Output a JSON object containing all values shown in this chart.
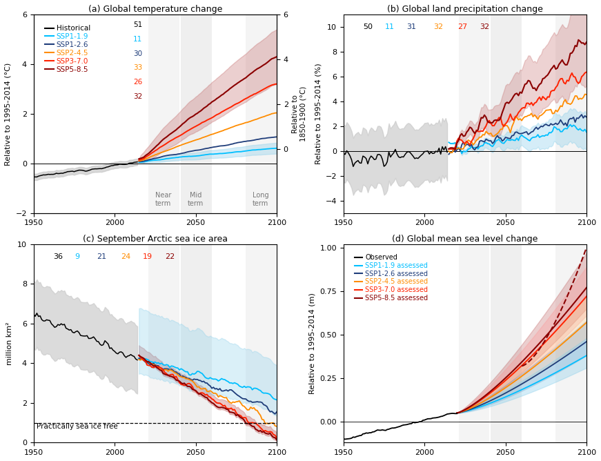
{
  "title_a": "(a) Global temperature change",
  "title_b": "(b) Global land precipitation change",
  "title_c": "(c) September Arctic sea ice area",
  "title_d": "(d) Global mean sea level change",
  "colors": {
    "historical": "#000000",
    "ssp119": "#00BFFF",
    "ssp126": "#1F3D7A",
    "ssp245": "#FF8C00",
    "ssp370": "#FF2200",
    "ssp585": "#8B0000"
  },
  "shade_colors": {
    "historical": "#C8C8C8",
    "ssp119": "#87CEEB",
    "ssp126": "#7090C0",
    "ssp245": "#FFD080",
    "ssp370": "#FF9090",
    "ssp585": "#C06060"
  },
  "near_term": [
    2021,
    2040
  ],
  "mid_term": [
    2041,
    2060
  ],
  "long_term": [
    2081,
    2100
  ],
  "xlim": [
    1950,
    2100
  ]
}
